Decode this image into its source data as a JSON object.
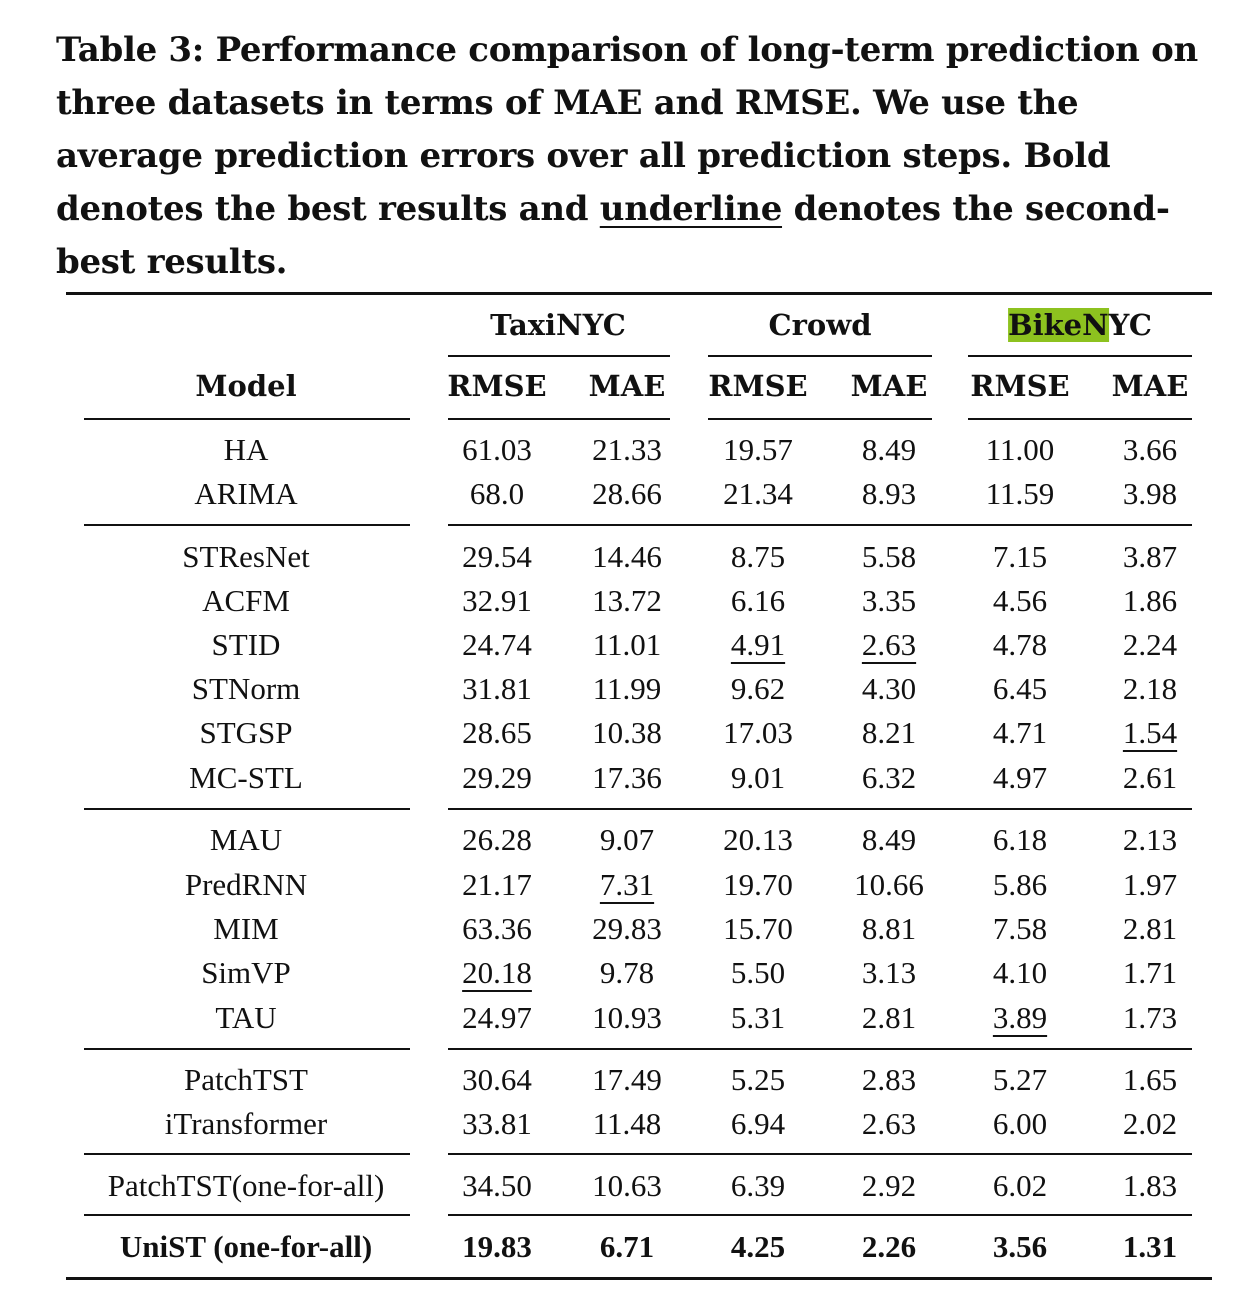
{
  "caption": {
    "part1": "Table 3: Performance comparison of long-term prediction on three datasets in terms of MAE and RMSE. We use the average prediction errors over all prediction steps. Bold denotes the best results and ",
    "underline_word": "underline",
    "part2": " denotes the second-best results."
  },
  "table": {
    "model_header": "Model",
    "datasets": [
      {
        "name_highlighted": "",
        "name_rest": "TaxiNYC"
      },
      {
        "name_highlighted": "",
        "name_rest": "Crowd"
      },
      {
        "name_highlighted": "BikeN",
        "name_rest": "YC"
      }
    ],
    "metrics": [
      "RMSE",
      "MAE",
      "RMSE",
      "MAE",
      "RMSE",
      "MAE"
    ],
    "rows": [
      {
        "model": "HA",
        "values": [
          "61.03",
          "21.33",
          "19.57",
          "8.49",
          "11.00",
          "3.66"
        ],
        "underline": []
      },
      {
        "model": "ARIMA",
        "values": [
          "68.0",
          "28.66",
          "21.34",
          "8.93",
          "11.59",
          "3.98"
        ],
        "underline": []
      },
      {
        "model": "STResNet",
        "values": [
          "29.54",
          "14.46",
          "8.75",
          "5.58",
          "7.15",
          "3.87"
        ],
        "underline": []
      },
      {
        "model": "ACFM",
        "values": [
          "32.91",
          "13.72",
          "6.16",
          "3.35",
          "4.56",
          "1.86"
        ],
        "underline": []
      },
      {
        "model": "STID",
        "values": [
          "24.74",
          "11.01",
          "4.91",
          "2.63",
          "4.78",
          "2.24"
        ],
        "underline": [
          2,
          3
        ]
      },
      {
        "model": "STNorm",
        "values": [
          "31.81",
          "11.99",
          "9.62",
          "4.30",
          "6.45",
          "2.18"
        ],
        "underline": []
      },
      {
        "model": "STGSP",
        "values": [
          "28.65",
          "10.38",
          "17.03",
          "8.21",
          "4.71",
          "1.54"
        ],
        "underline": [
          5
        ]
      },
      {
        "model": "MC-STL",
        "values": [
          "29.29",
          "17.36",
          "9.01",
          "6.32",
          "4.97",
          "2.61"
        ],
        "underline": []
      },
      {
        "model": "MAU",
        "values": [
          "26.28",
          "9.07",
          "20.13",
          "8.49",
          "6.18",
          "2.13"
        ],
        "underline": []
      },
      {
        "model": "PredRNN",
        "values": [
          "21.17",
          "7.31",
          "19.70",
          "10.66",
          "5.86",
          "1.97"
        ],
        "underline": [
          1
        ]
      },
      {
        "model": "MIM",
        "values": [
          "63.36",
          "29.83",
          "15.70",
          "8.81",
          "7.58",
          "2.81"
        ],
        "underline": []
      },
      {
        "model": "SimVP",
        "values": [
          "20.18",
          "9.78",
          "5.50",
          "3.13",
          "4.10",
          "1.71"
        ],
        "underline": [
          0
        ]
      },
      {
        "model": "TAU",
        "values": [
          "24.97",
          "10.93",
          "5.31",
          "2.81",
          "3.89",
          "1.73"
        ],
        "underline": [
          4
        ]
      },
      {
        "model": "PatchTST",
        "values": [
          "30.64",
          "17.49",
          "5.25",
          "2.83",
          "5.27",
          "1.65"
        ],
        "underline": []
      },
      {
        "model": "iTransformer",
        "values": [
          "33.81",
          "11.48",
          "6.94",
          "2.63",
          "6.00",
          "2.02"
        ],
        "underline": []
      },
      {
        "model": "PatchTST(one-for-all)",
        "values": [
          "34.50",
          "10.63",
          "6.39",
          "2.92",
          "6.02",
          "1.83"
        ],
        "underline": []
      },
      {
        "model": "UniST (one-for-all)",
        "values": [
          "19.83",
          "6.71",
          "4.25",
          "2.26",
          "3.56",
          "1.31"
        ],
        "underline": [],
        "bold": true
      }
    ]
  },
  "colors": {
    "highlight": "#8dc21f",
    "text": "#111111"
  }
}
